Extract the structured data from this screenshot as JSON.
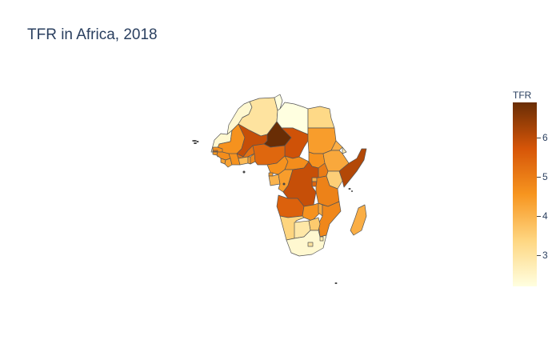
{
  "title": "TFR in Africa, 2018",
  "colorbar": {
    "title": "TFR",
    "min": 2.2,
    "max": 6.9,
    "ticks": [
      {
        "value": 3,
        "label": "3"
      },
      {
        "value": 4,
        "label": "4"
      },
      {
        "value": 5,
        "label": "5"
      },
      {
        "value": 6,
        "label": "6"
      }
    ],
    "colorscale": [
      "#ffffe0",
      "#fed681",
      "#f7951f",
      "#d65508",
      "#692d05"
    ]
  },
  "chart_data": {
    "type": "choropleth",
    "scope": "africa",
    "z_label": "TFR",
    "regions": [
      {
        "name": "Morocco",
        "value": 2.4
      },
      {
        "name": "Algeria",
        "value": 3.0
      },
      {
        "name": "Tunisia",
        "value": 2.2
      },
      {
        "name": "Libya",
        "value": 2.2
      },
      {
        "name": "Egypt",
        "value": 3.3
      },
      {
        "name": "Western Sahara",
        "value": 2.4
      },
      {
        "name": "Mauritania",
        "value": 4.6
      },
      {
        "name": "Mali",
        "value": 5.9
      },
      {
        "name": "Niger",
        "value": 6.9
      },
      {
        "name": "Chad",
        "value": 5.8
      },
      {
        "name": "Sudan",
        "value": 4.4
      },
      {
        "name": "Senegal",
        "value": 4.6
      },
      {
        "name": "Gambia",
        "value": 5.2
      },
      {
        "name": "Guinea-Bissau",
        "value": 4.5
      },
      {
        "name": "Guinea",
        "value": 4.7
      },
      {
        "name": "Sierra Leone",
        "value": 4.3
      },
      {
        "name": "Liberia",
        "value": 4.3
      },
      {
        "name": "Cote d'Ivoire",
        "value": 4.6
      },
      {
        "name": "Burkina Faso",
        "value": 5.2
      },
      {
        "name": "Ghana",
        "value": 3.9
      },
      {
        "name": "Togo",
        "value": 4.3
      },
      {
        "name": "Benin",
        "value": 4.8
      },
      {
        "name": "Nigeria",
        "value": 5.4
      },
      {
        "name": "Cameroon",
        "value": 4.6
      },
      {
        "name": "Central African Republic",
        "value": 4.7
      },
      {
        "name": "South Sudan",
        "value": 4.6
      },
      {
        "name": "Eritrea",
        "value": 4.1
      },
      {
        "name": "Ethiopia",
        "value": 4.2
      },
      {
        "name": "Djibouti",
        "value": 2.8
      },
      {
        "name": "Somalia",
        "value": 6.1
      },
      {
        "name": "Kenya",
        "value": 3.5
      },
      {
        "name": "Uganda",
        "value": 5.0
      },
      {
        "name": "Rwanda",
        "value": 4.1
      },
      {
        "name": "Burundi",
        "value": 5.4
      },
      {
        "name": "Tanzania",
        "value": 4.9
      },
      {
        "name": "Equatorial Guinea",
        "value": 4.5
      },
      {
        "name": "Gabon",
        "value": 4.0
      },
      {
        "name": "Congo",
        "value": 4.4
      },
      {
        "name": "DR Congo",
        "value": 5.9
      },
      {
        "name": "Angola",
        "value": 5.5
      },
      {
        "name": "Zambia",
        "value": 4.6
      },
      {
        "name": "Malawi",
        "value": 4.2
      },
      {
        "name": "Mozambique",
        "value": 4.8
      },
      {
        "name": "Zimbabwe",
        "value": 3.6
      },
      {
        "name": "Namibia",
        "value": 3.4
      },
      {
        "name": "Botswana",
        "value": 2.9
      },
      {
        "name": "South Africa",
        "value": 2.4
      },
      {
        "name": "Lesotho",
        "value": 3.0
      },
      {
        "name": "Eswatini",
        "value": 2.9
      },
      {
        "name": "Madagascar",
        "value": 4.1
      }
    ]
  }
}
